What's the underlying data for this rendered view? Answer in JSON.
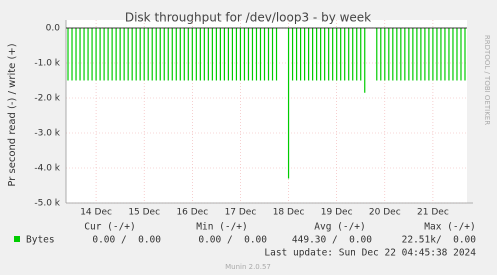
{
  "chart_data": {
    "type": "bar",
    "title": "Disk throughput for /dev/loop3 - by week",
    "y_label": "Pr second read (-) / write (+)",
    "side_label": "RRDTOOL / TOBI OETIKER",
    "categories": [
      null,
      null,
      null,
      null,
      null,
      null,
      null,
      "14 Dec",
      null,
      null,
      null,
      null,
      null,
      null,
      null,
      null,
      null,
      null,
      null,
      "15 Dec",
      null,
      null,
      null,
      null,
      null,
      null,
      null,
      null,
      null,
      null,
      null,
      "16 Dec",
      null,
      null,
      null,
      null,
      null,
      null,
      null,
      null,
      null,
      null,
      null,
      "17 Dec",
      null,
      null,
      null,
      null,
      null,
      null,
      null,
      null,
      null,
      null,
      null,
      "18 Dec",
      null,
      null,
      null,
      null,
      null,
      null,
      null,
      null,
      null,
      null,
      null,
      "19 Dec",
      null,
      null,
      null,
      null,
      null,
      null,
      null,
      null,
      null,
      null,
      null,
      "20 Dec",
      null,
      null,
      null,
      null,
      null,
      null,
      null,
      null,
      null,
      null,
      null,
      "21 Dec",
      null,
      null,
      null,
      null,
      null,
      null,
      null,
      null
    ],
    "series": [
      {
        "name": "Bytes",
        "color": "#00cc00",
        "values": [
          -1500,
          -1500,
          -1500,
          -1500,
          -1500,
          -1500,
          -1500,
          -1500,
          -1500,
          -1500,
          -1500,
          -1500,
          -1500,
          -1500,
          -1500,
          -1500,
          -1500,
          -1500,
          -1500,
          -1500,
          -1500,
          -1500,
          -1500,
          -1500,
          -1500,
          -1500,
          -1500,
          -1500,
          -1500,
          -1500,
          -1500,
          -1500,
          -1500,
          -1500,
          -1500,
          -1500,
          -1500,
          -1500,
          -1500,
          -1500,
          -1500,
          -1500,
          -1500,
          -1500,
          -1500,
          -1500,
          -1500,
          -1500,
          -1500,
          -1500,
          -1500,
          -1500,
          -1500,
          0,
          0,
          -4300,
          -1500,
          -1500,
          -1500,
          -1500,
          -1500,
          -1500,
          -1500,
          -1500,
          -1500,
          -1500,
          -1500,
          -1500,
          -1500,
          -1500,
          -1500,
          -1500,
          -1500,
          -1500,
          -1850,
          0,
          0,
          -1500,
          -1500,
          -1500,
          -1500,
          -1500,
          -1500,
          -1500,
          -1500,
          -1500,
          -1500,
          -1500,
          -1500,
          -1500,
          -1500,
          -1500,
          -1500,
          -1500,
          -1500,
          -1500,
          -1500,
          -1500,
          -1500,
          -1500
        ]
      }
    ],
    "ylim": [
      -5000,
      0
    ],
    "yticks": [
      {
        "value": 0,
        "label": "0.0"
      },
      {
        "value": -1000,
        "label": "-1.0 k"
      },
      {
        "value": -2000,
        "label": "-2.0 k"
      },
      {
        "value": -3000,
        "label": "-3.0 k"
      },
      {
        "value": -4000,
        "label": "-4.0 k"
      },
      {
        "value": -5000,
        "label": "-5.0 k"
      }
    ],
    "grid": true,
    "legend": {
      "headers": [
        "Cur (-/+)",
        "Min (-/+)",
        "Avg (-/+)",
        "Max (-/+)"
      ],
      "cells": [
        "0.00 /  0.00",
        "0.00 /  0.00",
        "449.30 /  0.00",
        "22.51k/  0.00"
      ]
    },
    "last_update": "Last update: Sun Dec 22 04:45:38 2024",
    "footer": "Munin 2.0.57"
  }
}
